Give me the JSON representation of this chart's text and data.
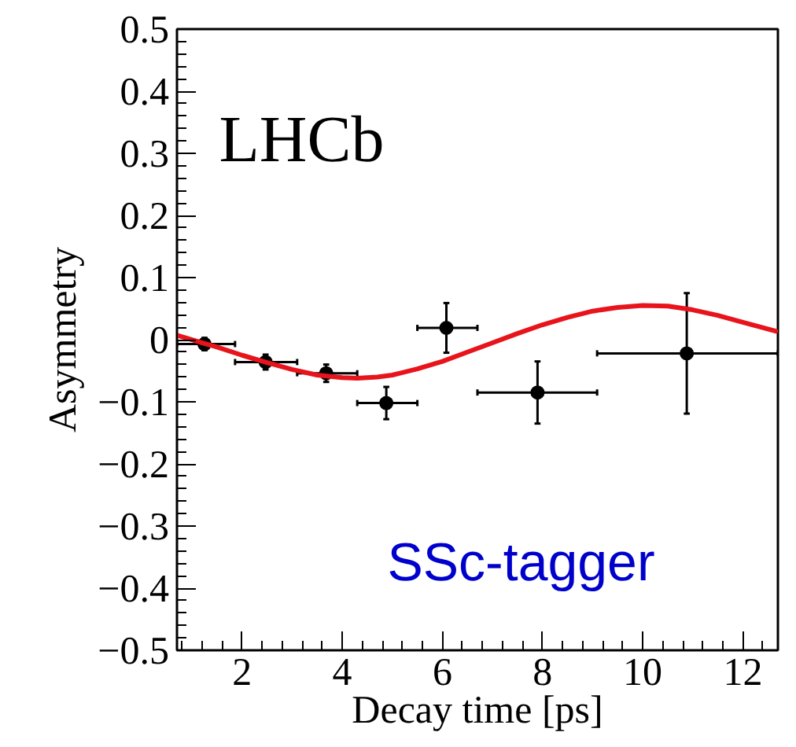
{
  "chart_data": {
    "type": "scatter",
    "xlabel": "Decay time [ps]",
    "ylabel": "Asymmetry",
    "xlim": [
      0.7,
      12.7
    ],
    "ylim": [
      -0.5,
      0.5
    ],
    "xticks": [
      2,
      4,
      6,
      8,
      10,
      12
    ],
    "yticks": [
      {
        "value": -0.5,
        "label": "−0.5"
      },
      {
        "value": -0.4,
        "label": "−0.4"
      },
      {
        "value": -0.3,
        "label": "−0.3"
      },
      {
        "value": -0.2,
        "label": "−0.2"
      },
      {
        "value": -0.1,
        "label": "−0.1"
      },
      0,
      0.1,
      0.2,
      0.3,
      0.4,
      0.5
    ],
    "annotations": [
      "LHCb",
      "SSc-tagger"
    ],
    "series": [
      {
        "marker": "circle",
        "color": "#000000",
        "x": [
          1.25,
          2.47,
          3.68,
          4.88,
          6.08,
          7.9,
          10.88
        ],
        "values": [
          -0.007,
          -0.036,
          -0.054,
          -0.102,
          0.019,
          -0.085,
          -0.022
        ],
        "errors": [
          0.01,
          0.012,
          0.014,
          0.026,
          0.04,
          0.05,
          0.097
        ],
        "xerrors": [
          [
            0.7,
            1.86
          ],
          [
            1.86,
            3.1
          ],
          [
            3.1,
            4.3
          ],
          [
            4.3,
            5.5
          ],
          [
            5.5,
            6.7
          ],
          [
            6.7,
            9.09
          ],
          [
            9.09,
            12.7
          ]
        ]
      },
      {
        "type": "line",
        "color": "#e8141c",
        "x": [
          0.7,
          1.5,
          2.0,
          2.5,
          3.0,
          3.5,
          4.0,
          4.3,
          4.7,
          5.0,
          5.5,
          6.0,
          6.5,
          7.0,
          7.5,
          8.0,
          8.5,
          9.0,
          9.5,
          10.0,
          10.5,
          11.0,
          11.5,
          12.0,
          12.7
        ],
        "values": [
          0.007,
          -0.012,
          -0.025,
          -0.037,
          -0.048,
          -0.057,
          -0.061,
          -0.062,
          -0.06,
          -0.057,
          -0.047,
          -0.035,
          -0.02,
          -0.005,
          0.01,
          0.024,
          0.036,
          0.046,
          0.052,
          0.055,
          0.054,
          0.048,
          0.039,
          0.028,
          0.013
        ]
      }
    ]
  }
}
